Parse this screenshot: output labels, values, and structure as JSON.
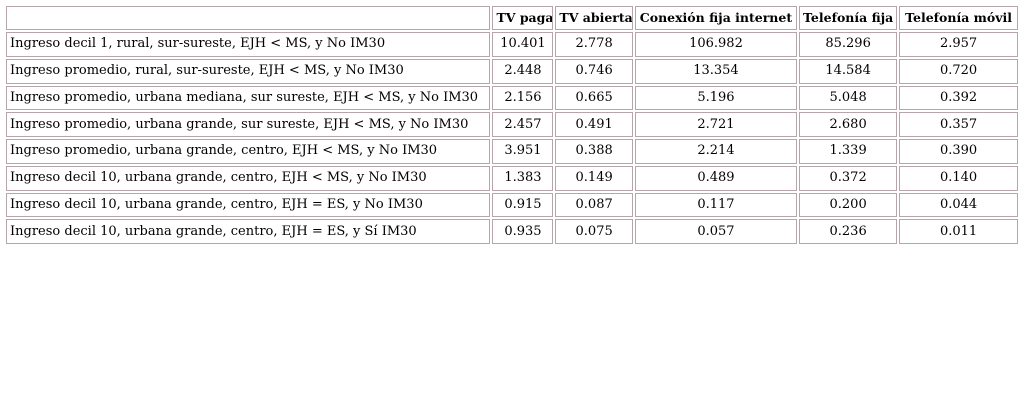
{
  "table": {
    "headers": [
      "",
      "TV paga",
      "TV abierta",
      "Conexión fija internet",
      "Telefonía fija",
      "Telefonía móvil"
    ],
    "rows": [
      {
        "label": "Ingreso decil 1, rural, sur-sureste, EJH < MS, y No IM30",
        "values": [
          "10.401",
          "2.778",
          "106.982",
          "85.296",
          "2.957"
        ]
      },
      {
        "label": "Ingreso promedio, rural, sur-sureste, EJH < MS, y No IM30",
        "values": [
          "2.448",
          "0.746",
          "13.354",
          "14.584",
          "0.720"
        ]
      },
      {
        "label": "Ingreso promedio, urbana mediana, sur sureste, EJH < MS, y No IM30",
        "values": [
          "2.156",
          "0.665",
          "5.196",
          "5.048",
          "0.392"
        ]
      },
      {
        "label": "Ingreso promedio, urbana grande, sur sureste, EJH < MS, y No IM30",
        "values": [
          "2.457",
          "0.491",
          "2.721",
          "2.680",
          "0.357"
        ]
      },
      {
        "label": "Ingreso promedio, urbana grande, centro, EJH < MS, y No IM30",
        "values": [
          "3.951",
          "0.388",
          "2.214",
          "1.339",
          "0.390"
        ]
      },
      {
        "label": "Ingreso decil 10, urbana grande, centro, EJH < MS, y No IM30",
        "values": [
          "1.383",
          "0.149",
          "0.489",
          "0.372",
          "0.140"
        ]
      },
      {
        "label": "Ingreso decil 10, urbana grande, centro, EJH = ES, y No IM30",
        "values": [
          "0.915",
          "0.087",
          "0.117",
          "0.200",
          "0.044"
        ]
      },
      {
        "label": "Ingreso decil 10, urbana grande, centro, EJH = ES, y Sí IM30",
        "values": [
          "0.935",
          "0.075",
          "0.057",
          "0.236",
          "0.011"
        ]
      }
    ]
  },
  "colors": {
    "cell_border": "#b7a5aa",
    "text": "#000000",
    "background": "#ffffff"
  }
}
